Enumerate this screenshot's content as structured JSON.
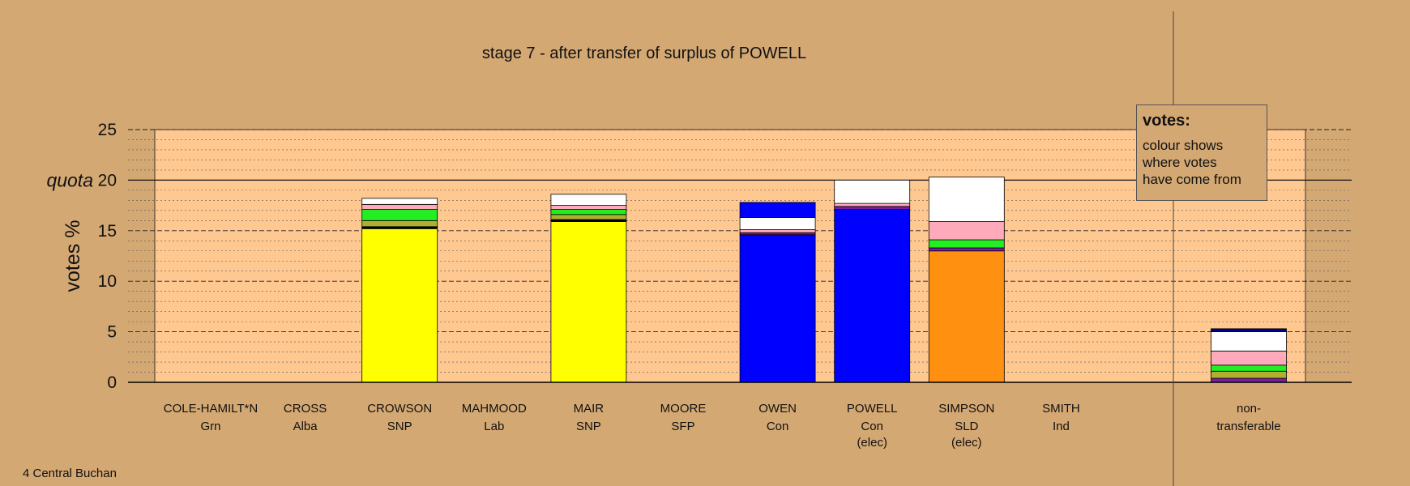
{
  "chart_data": {
    "type": "bar",
    "stacked": true,
    "title": "stage 7 - after transfer of surplus of POWELL",
    "ylabel": "votes %",
    "ylim": [
      0,
      25
    ],
    "yticks": [
      "0",
      "5",
      "10",
      "15",
      "20",
      "25"
    ],
    "quota": 20,
    "quota_label": "quota",
    "grid": true,
    "categories": [
      {
        "name": "COLE-HAMILT*N",
        "party": "Grn",
        "status": "",
        "segments": []
      },
      {
        "name": "CROSS",
        "party": "Alba",
        "status": "",
        "segments": []
      },
      {
        "name": "CROWSON",
        "party": "SNP",
        "status": "",
        "segments": [
          {
            "color": "#ffff00",
            "value": 15.2
          },
          {
            "color": "#000000",
            "value": 0.2
          },
          {
            "color": "#b0b030",
            "value": 0.6
          },
          {
            "color": "#22ee22",
            "value": 1.1
          },
          {
            "color": "#ffaabb",
            "value": 0.5
          },
          {
            "color": "#ffffff",
            "value": 0.6
          }
        ]
      },
      {
        "name": "MAHMOOD",
        "party": "Lab",
        "status": "",
        "segments": []
      },
      {
        "name": "MAIR",
        "party": "SNP",
        "status": "",
        "segments": [
          {
            "color": "#ffff00",
            "value": 15.9
          },
          {
            "color": "#000000",
            "value": 0.2
          },
          {
            "color": "#b0b030",
            "value": 0.5
          },
          {
            "color": "#22ee22",
            "value": 0.5
          },
          {
            "color": "#ffaabb",
            "value": 0.4
          },
          {
            "color": "#ffffff",
            "value": 1.1
          }
        ]
      },
      {
        "name": "MOORE",
        "party": "SFP",
        "status": "",
        "segments": []
      },
      {
        "name": "OWEN",
        "party": "Con",
        "status": "",
        "segments": [
          {
            "color": "#0000ff",
            "value": 14.6
          },
          {
            "color": "#7a1fa0",
            "value": 0.2
          },
          {
            "color": "#ffaabb",
            "value": 0.3
          },
          {
            "color": "#ffffff",
            "value": 1.2
          },
          {
            "color": "#0000ff",
            "value": 1.5
          }
        ]
      },
      {
        "name": "POWELL",
        "party": "Con",
        "status": "(elec)",
        "segments": [
          {
            "color": "#0000ff",
            "value": 17.1
          },
          {
            "color": "#7a1fa0",
            "value": 0.3
          },
          {
            "color": "#ffaabb",
            "value": 0.3
          },
          {
            "color": "#ffffff",
            "value": 2.3
          }
        ]
      },
      {
        "name": "SIMPSON",
        "party": "SLD",
        "status": "(elec)",
        "segments": [
          {
            "color": "#ff9010",
            "value": 13.0
          },
          {
            "color": "#7a1fa0",
            "value": 0.3
          },
          {
            "color": "#22ee22",
            "value": 0.8
          },
          {
            "color": "#ffaabb",
            "value": 1.8
          },
          {
            "color": "#ffffff",
            "value": 4.4
          }
        ]
      },
      {
        "name": "SMITH",
        "party": "Ind",
        "status": "",
        "segments": []
      }
    ],
    "nontransferable": {
      "label_line1": "non-",
      "label_line2": "transferable",
      "segments": [
        {
          "color": "#7a1fa0",
          "value": 0.4
        },
        {
          "color": "#b0b030",
          "value": 0.7
        },
        {
          "color": "#22ee22",
          "value": 0.6
        },
        {
          "color": "#ffaabb",
          "value": 1.4
        },
        {
          "color": "#ffffff",
          "value": 1.9
        },
        {
          "color": "#00008b",
          "value": 0.3
        }
      ]
    }
  },
  "legend": {
    "title": "votes:",
    "body": "colour shows\nwhere votes\nhave come from"
  },
  "footer": "4 Central Buchan",
  "colors": {
    "background": "#d4a873",
    "plot_area": "#ffc890"
  }
}
